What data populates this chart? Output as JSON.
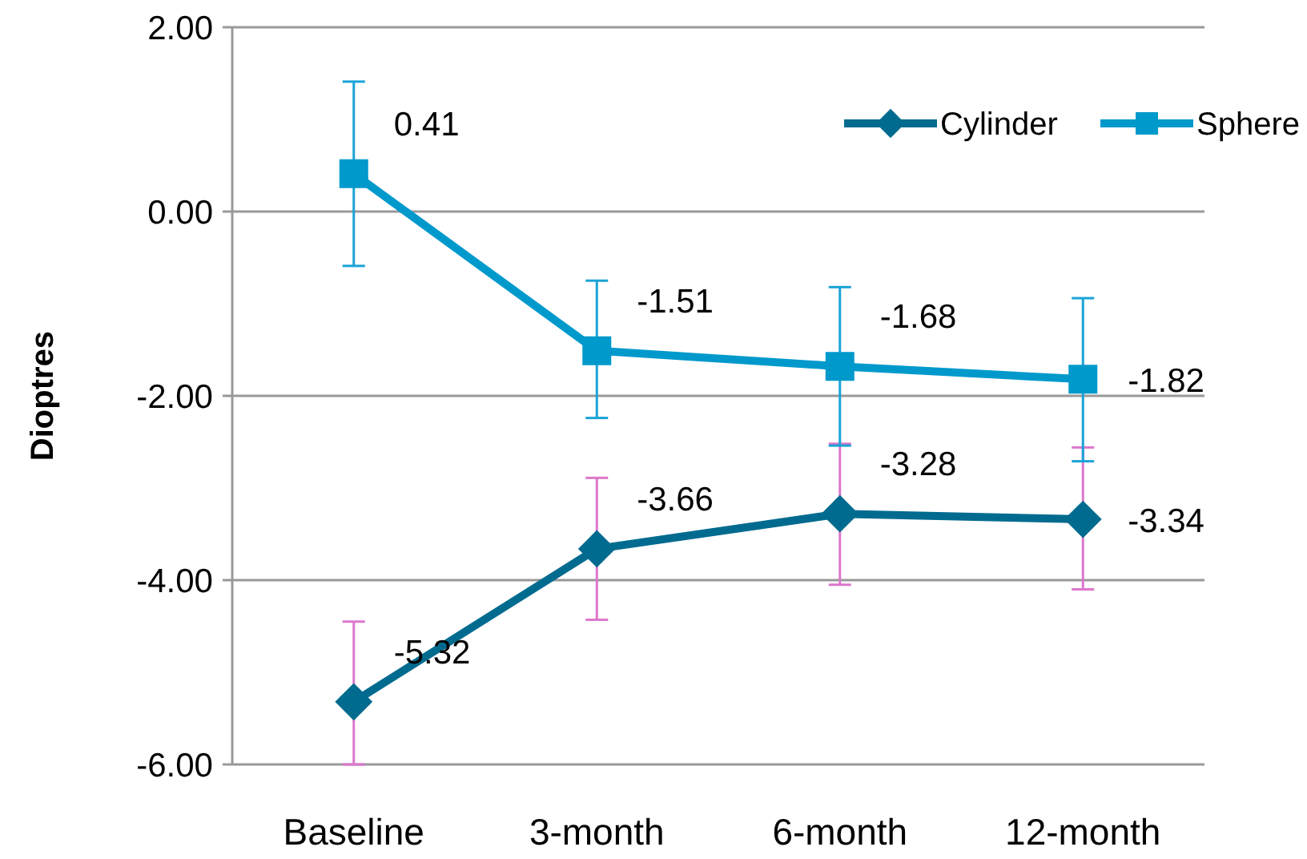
{
  "chart_data": {
    "type": "line",
    "ylabel": "Dioptres",
    "categories": [
      "Baseline",
      "3-month",
      "6-month",
      "12-month"
    ],
    "series": [
      {
        "name": "Cylinder",
        "color": "#006b8f",
        "marker": "diamond",
        "values": [
          -5.32,
          -3.66,
          -3.28,
          -3.34
        ],
        "errors": [
          [
            -6.0,
            -4.45
          ],
          [
            -4.43,
            -2.89
          ],
          [
            -4.05,
            -2.52
          ],
          [
            -4.1,
            -2.56
          ]
        ]
      },
      {
        "name": "Sphere",
        "color": "#0099cc",
        "marker": "square",
        "values": [
          0.41,
          -1.51,
          -1.68,
          -1.82
        ],
        "errors": [
          [
            -0.59,
            1.41
          ],
          [
            -2.24,
            -0.75
          ],
          [
            -2.54,
            -0.82
          ],
          [
            -2.71,
            -0.94
          ]
        ]
      }
    ],
    "ylim": [
      -6,
      2
    ],
    "yticks": [
      {
        "value": -6,
        "label": "-6.00"
      },
      {
        "value": -4,
        "label": "-4.00"
      },
      {
        "value": -2,
        "label": "-2.00"
      },
      {
        "value": 0,
        "label": "0.00"
      },
      {
        "value": 2,
        "label": "2.00"
      }
    ],
    "grid": "y",
    "legend": "top right",
    "data_labels": true,
    "line_style": "solid"
  }
}
